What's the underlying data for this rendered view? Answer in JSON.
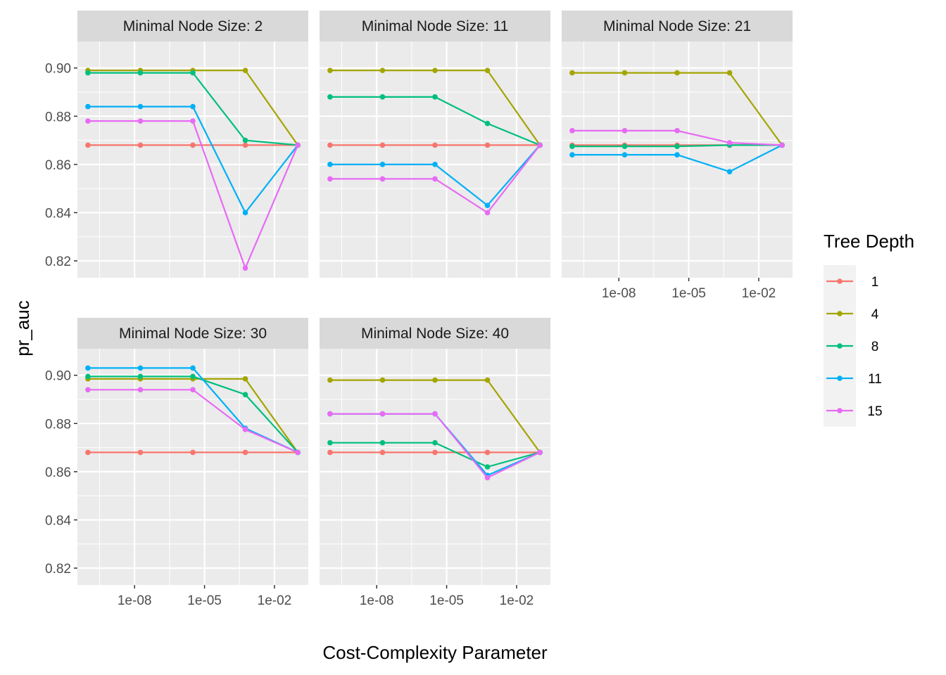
{
  "chart_data": {
    "type": "line",
    "xlabel": "Cost-Complexity Parameter",
    "ylabel": "pr_auc",
    "x_scale": "log10",
    "x_ticks": [
      1e-08,
      1e-05,
      0.01
    ],
    "x_tick_labels": [
      "1e-08",
      "1e-05",
      "1e-02"
    ],
    "y_ticks": [
      0.82,
      0.84,
      0.86,
      0.88,
      0.9
    ],
    "y_tick_labels": [
      "0.82",
      "0.84",
      "0.86",
      "0.88",
      "0.90"
    ],
    "ylim": [
      0.813,
      0.911
    ],
    "grid": true,
    "legend": {
      "title": "Tree Depth",
      "position": "right",
      "entries": [
        {
          "label": "1",
          "color": "#F8766D"
        },
        {
          "label": "4",
          "color": "#A3A500"
        },
        {
          "label": "8",
          "color": "#00BF7D"
        },
        {
          "label": "11",
          "color": "#00B0F6"
        },
        {
          "label": "15",
          "color": "#E76BF3"
        }
      ]
    },
    "x": [
      1e-10,
      1.78e-08,
      3.16e-06,
      0.000562,
      0.1
    ],
    "facets": [
      {
        "title": "Minimal Node Size: 2",
        "series": [
          {
            "name": "1",
            "values": [
              0.868,
              0.868,
              0.868,
              0.868,
              0.868
            ]
          },
          {
            "name": "4",
            "values": [
              0.899,
              0.899,
              0.899,
              0.899,
              0.868
            ]
          },
          {
            "name": "8",
            "values": [
              0.898,
              0.898,
              0.898,
              0.87,
              0.868
            ]
          },
          {
            "name": "11",
            "values": [
              0.884,
              0.884,
              0.884,
              0.84,
              0.868
            ]
          },
          {
            "name": "15",
            "values": [
              0.878,
              0.878,
              0.878,
              0.817,
              0.868
            ]
          }
        ]
      },
      {
        "title": "Minimal Node Size: 11",
        "series": [
          {
            "name": "1",
            "values": [
              0.868,
              0.868,
              0.868,
              0.868,
              0.868
            ]
          },
          {
            "name": "4",
            "values": [
              0.899,
              0.899,
              0.899,
              0.899,
              0.868
            ]
          },
          {
            "name": "8",
            "values": [
              0.888,
              0.888,
              0.888,
              0.877,
              0.868
            ]
          },
          {
            "name": "11",
            "values": [
              0.86,
              0.86,
              0.86,
              0.843,
              0.868
            ]
          },
          {
            "name": "15",
            "values": [
              0.854,
              0.854,
              0.854,
              0.84,
              0.868
            ]
          }
        ]
      },
      {
        "title": "Minimal Node Size: 21",
        "series": [
          {
            "name": "1",
            "values": [
              0.868,
              0.868,
              0.868,
              0.868,
              0.868
            ]
          },
          {
            "name": "4",
            "values": [
              0.898,
              0.898,
              0.898,
              0.898,
              0.868
            ]
          },
          {
            "name": "8",
            "values": [
              0.8675,
              0.8675,
              0.8675,
              0.868,
              0.868
            ]
          },
          {
            "name": "11",
            "values": [
              0.864,
              0.864,
              0.864,
              0.857,
              0.868
            ]
          },
          {
            "name": "15",
            "values": [
              0.874,
              0.874,
              0.874,
              0.869,
              0.868
            ]
          }
        ]
      },
      {
        "title": "Minimal Node Size: 30",
        "series": [
          {
            "name": "1",
            "values": [
              0.868,
              0.868,
              0.868,
              0.868,
              0.868
            ]
          },
          {
            "name": "4",
            "values": [
              0.8985,
              0.8985,
              0.8985,
              0.8985,
              0.868
            ]
          },
          {
            "name": "8",
            "values": [
              0.8995,
              0.8995,
              0.8995,
              0.892,
              0.868
            ]
          },
          {
            "name": "11",
            "values": [
              0.903,
              0.903,
              0.903,
              0.878,
              0.868
            ]
          },
          {
            "name": "15",
            "values": [
              0.894,
              0.894,
              0.894,
              0.8775,
              0.868
            ]
          }
        ]
      },
      {
        "title": "Minimal Node Size: 40",
        "series": [
          {
            "name": "1",
            "values": [
              0.868,
              0.868,
              0.868,
              0.868,
              0.868
            ]
          },
          {
            "name": "4",
            "values": [
              0.898,
              0.898,
              0.898,
              0.898,
              0.868
            ]
          },
          {
            "name": "8",
            "values": [
              0.872,
              0.872,
              0.872,
              0.862,
              0.868
            ]
          },
          {
            "name": "11",
            "values": [
              0.884,
              0.884,
              0.884,
              0.8585,
              0.868
            ]
          },
          {
            "name": "15",
            "values": [
              0.884,
              0.884,
              0.884,
              0.8575,
              0.868
            ]
          }
        ]
      }
    ]
  }
}
